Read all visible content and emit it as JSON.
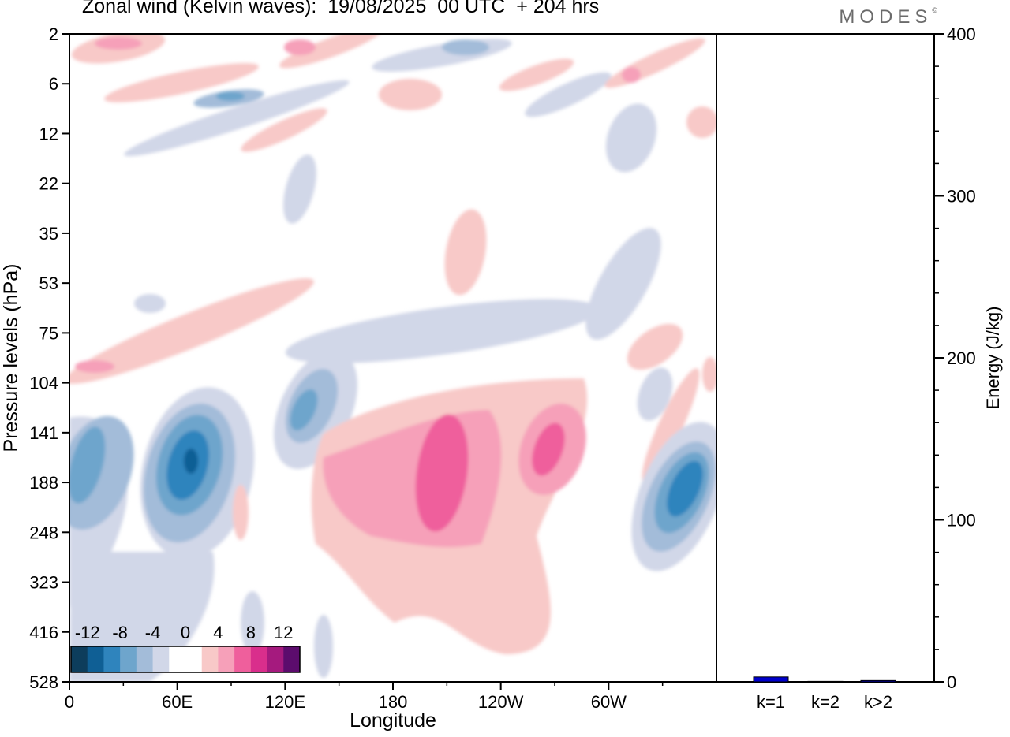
{
  "header": {
    "title": "Zonal wind (Kelvin waves):  19/08/2025  00 UTC  + 204 hrs",
    "brand": "MODES",
    "brand_mark": "©"
  },
  "hovmoller": {
    "ylabel": "Pressure levels (hPa)",
    "xlabel": "Longitude",
    "y_ticks": [
      "2",
      "6",
      "12",
      "22",
      "35",
      "53",
      "75",
      "104",
      "141",
      "188",
      "248",
      "323",
      "416",
      "528"
    ],
    "x_ticks": [
      "0",
      "60E",
      "120E",
      "180",
      "120W",
      "60W"
    ],
    "colorbar_labels": [
      "-12",
      "-8",
      "-4",
      "0",
      "4",
      "8",
      "12"
    ],
    "colorbar_colors": [
      "#0d3d5c",
      "#0f5f95",
      "#2f84bd",
      "#6ea5cc",
      "#a3bcd9",
      "#d1d7e8",
      "#ffffff",
      "#ffffff",
      "#f8c9c8",
      "#f6a0b9",
      "#ef5f9c",
      "#d92e8c",
      "#a51a7e",
      "#5c0c6d"
    ]
  },
  "chart_data": {
    "type": "bar",
    "categories": [
      "k=1",
      "k=2",
      "k>2"
    ],
    "values": [
      3,
      0.3,
      0.8
    ],
    "title": "",
    "xlabel": "",
    "ylabel": "Energy (J/kg)",
    "ylim": [
      0,
      400
    ],
    "y_ticks": [
      0,
      100,
      200,
      300,
      400
    ],
    "bar_colors": [
      "#0000cc",
      "#0000cc",
      "#0000cc"
    ]
  }
}
